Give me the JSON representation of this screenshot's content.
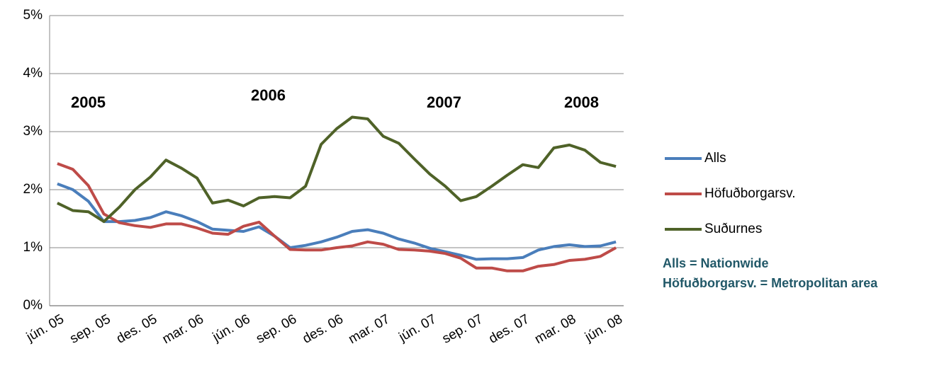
{
  "chart_data": {
    "type": "line",
    "categories": [
      "jún. 05",
      null,
      null,
      "sep. 05",
      null,
      null,
      "des. 05",
      null,
      null,
      "mar. 06",
      null,
      null,
      "jún. 06",
      null,
      null,
      "sep. 06",
      null,
      null,
      "des. 06",
      null,
      null,
      "mar. 07",
      null,
      null,
      "jún. 07",
      null,
      null,
      "sep. 07",
      null,
      null,
      "des. 07",
      null,
      null,
      "mar. 08",
      null,
      null,
      "jún. 08"
    ],
    "series": [
      {
        "name": "Alls",
        "color": "#4a7ebb",
        "values": [
          2.1,
          2.0,
          1.8,
          1.45,
          1.45,
          1.47,
          1.52,
          1.62,
          1.55,
          1.45,
          1.32,
          1.3,
          1.28,
          1.36,
          1.2,
          1.0,
          1.04,
          1.1,
          1.18,
          1.28,
          1.31,
          1.25,
          1.15,
          1.08,
          0.99,
          0.93,
          0.87,
          0.8,
          0.81,
          0.81,
          0.83,
          0.96,
          1.02,
          1.05,
          1.02,
          1.03,
          1.1
        ]
      },
      {
        "name": "Höfuðborgarsv.",
        "color": "#be4b48",
        "values": [
          2.45,
          2.35,
          2.07,
          1.58,
          1.43,
          1.38,
          1.35,
          1.41,
          1.41,
          1.34,
          1.25,
          1.23,
          1.37,
          1.44,
          1.2,
          0.97,
          0.96,
          0.96,
          1.0,
          1.03,
          1.1,
          1.06,
          0.97,
          0.96,
          0.94,
          0.9,
          0.82,
          0.65,
          0.65,
          0.6,
          0.6,
          0.68,
          0.71,
          0.78,
          0.8,
          0.85,
          1.0
        ]
      },
      {
        "name": "Suðurnes",
        "color": "#4f6228",
        "values": [
          1.77,
          1.64,
          1.62,
          1.45,
          1.7,
          2.0,
          2.22,
          2.51,
          2.37,
          2.2,
          1.77,
          1.82,
          1.72,
          1.86,
          1.88,
          1.86,
          2.06,
          2.78,
          3.05,
          3.25,
          3.22,
          2.92,
          2.8,
          2.53,
          2.27,
          2.06,
          1.81,
          1.88,
          2.06,
          2.25,
          2.43,
          2.38,
          2.72,
          2.77,
          2.68,
          2.47,
          2.4
        ]
      }
    ],
    "ylim": [
      0,
      5
    ],
    "yticks": [
      {
        "value": 0,
        "label": "0%"
      },
      {
        "value": 1,
        "label": "1%"
      },
      {
        "value": 2,
        "label": "2%"
      },
      {
        "value": 3,
        "label": "3%"
      },
      {
        "value": 4,
        "label": "4%"
      },
      {
        "value": 5,
        "label": "5%"
      }
    ],
    "grid": true,
    "annotations": [
      "2005",
      "2006",
      "2007",
      "2008"
    ],
    "notes": [
      "Alls = Nationwide",
      "Höfuðborgarsv. = Metropolitan area"
    ],
    "legend": "right"
  }
}
